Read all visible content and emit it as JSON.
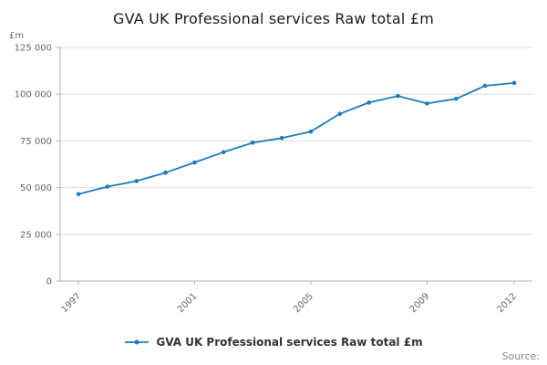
{
  "chart_data": {
    "type": "line",
    "title": "GVA UK Professional services Raw total £m",
    "ylabel": "£m",
    "xlabel": "",
    "x": [
      1997,
      1998,
      1999,
      2000,
      2001,
      2002,
      2003,
      2004,
      2005,
      2006,
      2007,
      2008,
      2009,
      2010,
      2011,
      2012
    ],
    "values": [
      46500,
      50500,
      53500,
      58000,
      63500,
      69000,
      74000,
      76500,
      80000,
      89500,
      95500,
      99000,
      95000,
      97500,
      104500,
      106000
    ],
    "ylim": [
      0,
      125000
    ],
    "yticks": [
      0,
      25000,
      50000,
      75000,
      100000,
      125000
    ],
    "ytick_labels": [
      "0",
      "25 000",
      "50 000",
      "75 000",
      "100 000",
      "125 000"
    ],
    "xticks": [
      1997,
      2001,
      2005,
      2009,
      2012
    ],
    "xtick_labels": [
      "1997",
      "2001",
      "2005",
      "2009",
      "2012"
    ],
    "grid": "horizontal",
    "legend_position": "bottom",
    "legend": "GVA UK Professional services Raw total £m",
    "line_color": "#1d7cba",
    "grid_color": "#dcdcdc",
    "axis_color": "#b0b0b0",
    "tick_text_color": "#666666"
  },
  "footer": {
    "source_label": "Source:"
  }
}
